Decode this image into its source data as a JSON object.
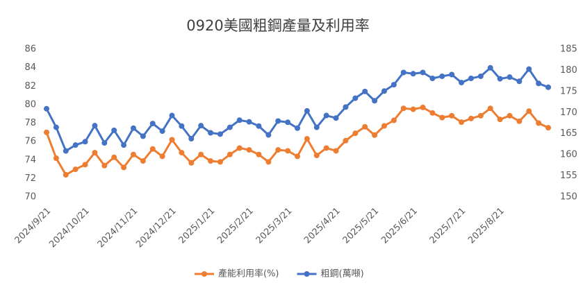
{
  "chart_data": {
    "type": "line",
    "title": "0920美國粗鋼產量及利用率",
    "categories": [
      "2024/9/21",
      null,
      null,
      null,
      "2024/10/21",
      null,
      null,
      null,
      null,
      "2024/11/21",
      null,
      null,
      null,
      "2024/12/21",
      null,
      null,
      null,
      "2025/1/21",
      null,
      null,
      null,
      "2025/2/21",
      null,
      null,
      null,
      "2025/3/21",
      null,
      null,
      null,
      null,
      "2025/4/21",
      null,
      null,
      null,
      "2025/5/21",
      null,
      null,
      null,
      "2025/6/21",
      null,
      null,
      null,
      null,
      "2025/7/21",
      null,
      null,
      null,
      "2025/8/21",
      null,
      null,
      null,
      null,
      null
    ],
    "series": [
      {
        "name": "產能利用率(%)",
        "color": "#ED7D31",
        "axis": "y",
        "values": [
          77,
          74.2,
          72.4,
          73,
          73.5,
          74.8,
          73.4,
          74.3,
          73.2,
          74.6,
          73.9,
          75.2,
          74.4,
          76.2,
          74.8,
          73.7,
          74.6,
          73.9,
          73.8,
          74.6,
          75.3,
          75.1,
          74.6,
          73.8,
          75.1,
          75.0,
          74.4,
          76.3,
          74.5,
          75.3,
          75.0,
          76.1,
          76.9,
          77.6,
          76.7,
          77.7,
          78.3,
          79.6,
          79.5,
          79.7,
          79.1,
          78.6,
          78.8,
          78.1,
          78.5,
          78.8,
          79.6,
          78.4,
          78.8,
          78.2,
          79.3,
          78.0,
          77.5
        ]
      },
      {
        "name": "粗鋼(萬噸)",
        "color": "#4472C4",
        "axis": "y2",
        "values": [
          170.9,
          166.5,
          160.9,
          162.3,
          163.1,
          166.9,
          162.8,
          165.8,
          162.3,
          166.3,
          164.4,
          167.4,
          165.6,
          169.3,
          166.8,
          163.8,
          166.9,
          165.2,
          164.9,
          166.5,
          168.2,
          167.8,
          166.8,
          164.7,
          168,
          167.7,
          166.3,
          170.4,
          166.5,
          169.3,
          168.7,
          171.3,
          173.4,
          175,
          172.8,
          175.1,
          176.6,
          179.5,
          179.2,
          179.5,
          178.1,
          178.6,
          179,
          177.1,
          178.1,
          178.6,
          180.6,
          178.0,
          178.4,
          177.4,
          180.3,
          176.9,
          176.0
        ]
      }
    ],
    "ylim": [
      70,
      86
    ],
    "yticks": [
      70,
      72,
      74,
      76,
      78,
      80,
      82,
      84,
      86
    ],
    "y2lim": [
      150,
      185
    ],
    "y2ticks": [
      150,
      155,
      160,
      165,
      170,
      175,
      180,
      185
    ],
    "grid": false,
    "legend": "bottom"
  }
}
